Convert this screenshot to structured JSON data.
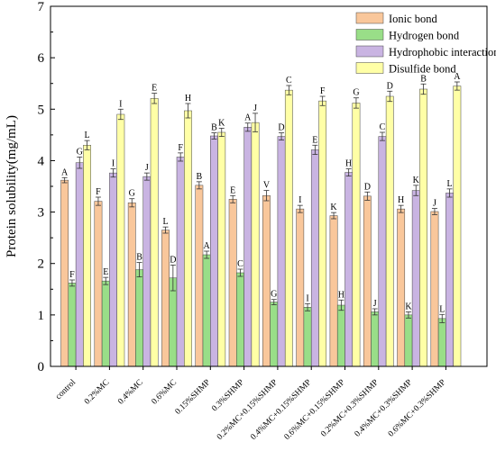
{
  "chart_data": {
    "type": "bar",
    "ylabel": "Protein solubility(mg/mL)",
    "xlabel": "",
    "ylim": [
      0,
      7
    ],
    "yticks": [
      0,
      1,
      2,
      3,
      4,
      5,
      6,
      7
    ],
    "grid": false,
    "legend_position": "top-right",
    "categories": [
      "control",
      "0.2%MC",
      "0.4%MC",
      "0.6%MC",
      "0.15%SHMP",
      "0.3%SHMP",
      "0.2%MC+0.15%SHMP",
      "0.4%MC+0.15%SHMP",
      "0.6%MC+0.15%SHMP",
      "0.2%MC+0.3%SHMP",
      "0.4%MC+0.3%SHMP",
      "0.6%MC+0.3%SHMP"
    ],
    "series": [
      {
        "name": "Ionic bond",
        "color": "#F9C79B",
        "values": [
          3.62,
          3.21,
          3.18,
          2.65,
          3.52,
          3.25,
          3.32,
          3.06,
          2.93,
          3.31,
          3.06,
          3.01
        ],
        "errors": [
          0.05,
          0.08,
          0.08,
          0.06,
          0.07,
          0.07,
          0.1,
          0.07,
          0.06,
          0.08,
          0.07,
          0.06
        ],
        "letters": [
          "A",
          "F",
          "G",
          "L",
          "B",
          "E",
          "V",
          "I",
          "K",
          "D",
          "H",
          "J"
        ]
      },
      {
        "name": "Hydrogen bond",
        "color": "#99DE88",
        "values": [
          1.62,
          1.66,
          1.88,
          1.72,
          2.17,
          1.82,
          1.25,
          1.15,
          1.19,
          1.06,
          1.0,
          0.93
        ],
        "errors": [
          0.06,
          0.07,
          0.14,
          0.25,
          0.07,
          0.07,
          0.05,
          0.07,
          0.1,
          0.06,
          0.06,
          0.08
        ],
        "letters": [
          "F",
          "E",
          "B",
          "D",
          "A",
          "C",
          "G",
          "I",
          "H",
          "J",
          "K",
          "L"
        ]
      },
      {
        "name": "Hydrophobic interaction",
        "color": "#C9B4E2",
        "values": [
          3.96,
          3.76,
          3.69,
          4.07,
          4.48,
          4.65,
          4.47,
          4.21,
          3.77,
          4.47,
          3.42,
          3.37
        ],
        "errors": [
          0.11,
          0.08,
          0.07,
          0.08,
          0.06,
          0.08,
          0.07,
          0.09,
          0.07,
          0.08,
          0.1,
          0.08
        ],
        "letters": [
          "G",
          "I",
          "J",
          "F",
          "B",
          "A",
          "D",
          "E",
          "H",
          "C",
          "K",
          "L"
        ]
      },
      {
        "name": "Disulfide bond",
        "color": "#FFFFA6",
        "values": [
          4.3,
          4.9,
          5.21,
          4.97,
          4.55,
          4.74,
          5.37,
          5.16,
          5.12,
          5.25,
          5.39,
          5.45
        ],
        "errors": [
          0.09,
          0.1,
          0.1,
          0.14,
          0.08,
          0.18,
          0.09,
          0.09,
          0.1,
          0.1,
          0.1,
          0.08
        ],
        "letters": [
          "L",
          "I",
          "E",
          "H",
          "K",
          "J",
          "C",
          "F",
          "G",
          "D",
          "B",
          "A"
        ]
      }
    ]
  }
}
